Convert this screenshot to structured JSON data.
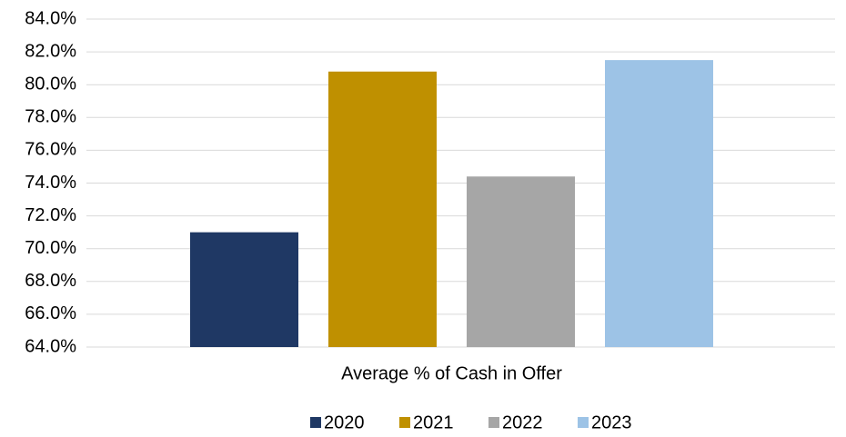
{
  "chart_data": {
    "type": "bar",
    "categories": [
      "Average % of Cash in Offer"
    ],
    "series": [
      {
        "name": "2020",
        "color": "#1f3864",
        "values": [
          71.0
        ]
      },
      {
        "name": "2021",
        "color": "#bf9000",
        "values": [
          80.8
        ]
      },
      {
        "name": "2022",
        "color": "#a6a6a6",
        "values": [
          74.4
        ]
      },
      {
        "name": "2023",
        "color": "#9dc3e6",
        "values": [
          81.5
        ]
      }
    ],
    "ylim": [
      64,
      84
    ],
    "yticks": [
      {
        "value": 64,
        "label": "64.0%"
      },
      {
        "value": 66,
        "label": "66.0%"
      },
      {
        "value": 68,
        "label": "68.0%"
      },
      {
        "value": 70,
        "label": "70.0%"
      },
      {
        "value": 72,
        "label": "72.0%"
      },
      {
        "value": 74,
        "label": "74.0%"
      },
      {
        "value": 76,
        "label": "76.0%"
      },
      {
        "value": 78,
        "label": "78.0%"
      },
      {
        "value": 80,
        "label": "80.0%"
      },
      {
        "value": 82,
        "label": "82.0%"
      },
      {
        "value": 84,
        "label": "84.0%"
      }
    ],
    "grid": true,
    "legend": "bottom"
  }
}
